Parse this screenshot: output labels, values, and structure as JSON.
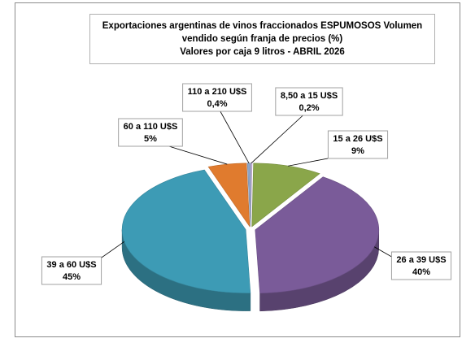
{
  "chart_data": {
    "type": "pie",
    "title": "Exportaciones argentinas de vinos fraccionados ESPUMOSOS  Volumen vendido según franja de precios (%)",
    "subtitle": "Valores por caja  9 litros -  ABRIL 2026",
    "categories": [
      "8,50 a 15 U$S",
      "15 a 26 U$S",
      "26 a 39 U$S",
      "39 a 60 U$S",
      "60 a 110 U$S",
      "110 a 210 U$S"
    ],
    "values": [
      0.2,
      9,
      40,
      45,
      5,
      0.4
    ],
    "value_labels": [
      "0,2%",
      "9%",
      "40%",
      "45%",
      "5%",
      "0,4%"
    ],
    "colors": [
      "#c9b3d9",
      "#8aa64a",
      "#7a5b99",
      "#3d9bb5",
      "#e07b2e",
      "#8ea6c8"
    ]
  }
}
